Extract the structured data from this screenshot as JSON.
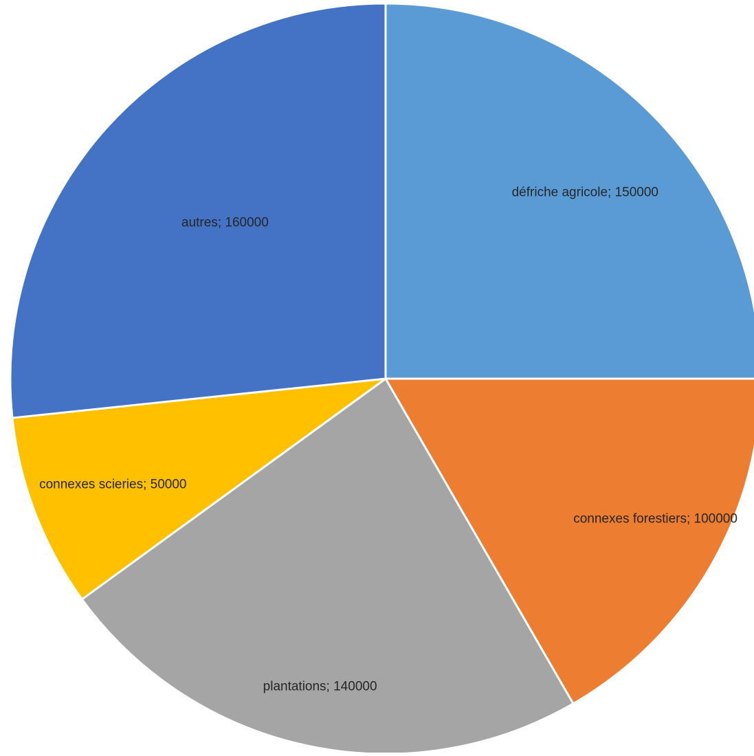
{
  "chart_data": {
    "type": "pie",
    "title": "",
    "label_separator": "; ",
    "start_angle_deg": 0,
    "direction": "clockwise",
    "slice_border_color": "#ffffff",
    "slices": [
      {
        "name": "défriche agricole",
        "value": 150000,
        "color": "#5B9BD5"
      },
      {
        "name": "connexes forestiers",
        "value": 100000,
        "color": "#ED7D31"
      },
      {
        "name": "plantations",
        "value": 140000,
        "color": "#A5A5A5"
      },
      {
        "name": "connexes scieries",
        "value": 50000,
        "color": "#FFC000"
      },
      {
        "name": "autres",
        "value": 160000,
        "color": "#4472C4"
      }
    ]
  }
}
